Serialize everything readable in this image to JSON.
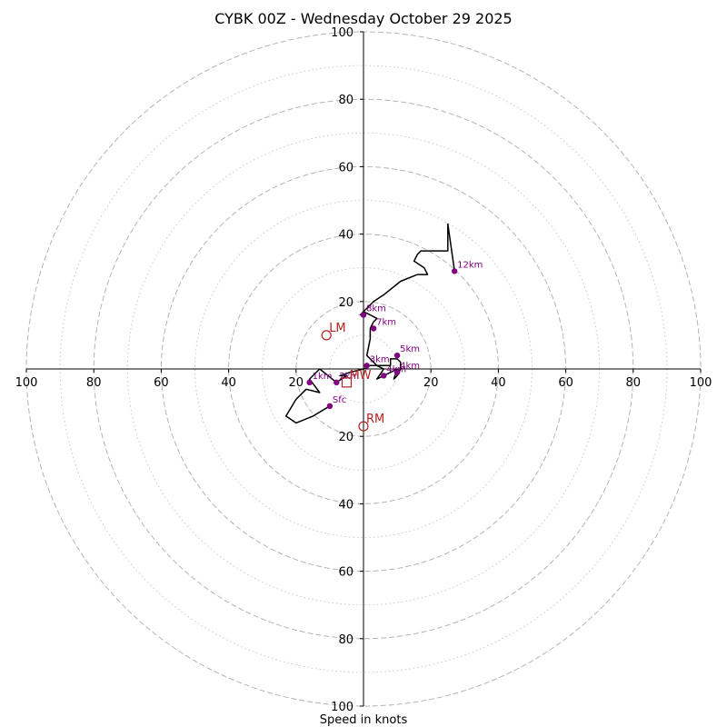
{
  "chart_data": {
    "type": "hodograph",
    "title": "CYBK 00Z - Wednesday October 29 2025",
    "xlabel": "Speed in knots",
    "units": "knots",
    "range": [
      -100,
      100
    ],
    "dashed_rings": [
      20,
      40,
      60,
      80,
      100
    ],
    "dotted_rings": [
      10,
      30,
      50,
      70,
      90
    ],
    "x_tick_labels": [
      "100",
      "80",
      "60",
      "40",
      "20",
      "20",
      "40",
      "60",
      "80",
      "100"
    ],
    "y_tick_labels": [
      "100",
      "80",
      "60",
      "40",
      "20",
      "20",
      "40",
      "60",
      "80",
      "100"
    ],
    "trace_color": "#000000",
    "label_color": "#800080",
    "motion_color": "#b22222",
    "trace": [
      [
        -10,
        -11
      ],
      [
        -15,
        -14
      ],
      [
        -20,
        -16
      ],
      [
        -23,
        -14
      ],
      [
        -20,
        -9
      ],
      [
        -17,
        -6
      ],
      [
        -13,
        -7
      ],
      [
        -16,
        -3
      ],
      [
        -13,
        0
      ],
      [
        -8,
        -4
      ],
      [
        -5,
        -2
      ],
      [
        -7,
        -2
      ],
      [
        -4,
        -1
      ],
      [
        0,
        0
      ],
      [
        2,
        1
      ],
      [
        4,
        1
      ],
      [
        6,
        0
      ],
      [
        4,
        -3
      ],
      [
        6,
        -2
      ],
      [
        8,
        -1
      ],
      [
        10,
        0
      ],
      [
        9,
        -3
      ],
      [
        10,
        -2
      ],
      [
        11,
        0
      ],
      [
        11,
        2
      ],
      [
        10,
        3
      ],
      [
        9,
        3
      ],
      [
        8,
        3
      ],
      [
        8,
        1
      ],
      [
        4,
        1
      ],
      [
        2,
        3
      ],
      [
        1,
        4
      ],
      [
        2,
        9
      ],
      [
        2,
        12
      ],
      [
        3,
        14
      ],
      [
        4,
        15
      ],
      [
        2,
        16
      ],
      [
        0,
        17
      ],
      [
        -1,
        16
      ],
      [
        3,
        20
      ],
      [
        6,
        22
      ],
      [
        11,
        26
      ],
      [
        16,
        28
      ],
      [
        19,
        28
      ],
      [
        18,
        30
      ],
      [
        15,
        32
      ],
      [
        16,
        34
      ],
      [
        17,
        35
      ],
      [
        25,
        35
      ],
      [
        25,
        43
      ],
      [
        27,
        29
      ]
    ],
    "height_markers": [
      {
        "label": "Sfc",
        "u": -10,
        "v": -11
      },
      {
        "label": "1km",
        "u": -16,
        "v": -4
      },
      {
        "label": "2km",
        "u": -8,
        "v": -4
      },
      {
        "label": "3km",
        "u": 1,
        "v": 1
      },
      {
        "label": "4km",
        "u": 6,
        "v": -2
      },
      {
        "label": "4km",
        "u": 10,
        "v": -1
      },
      {
        "label": "5km",
        "u": 10,
        "v": 4
      },
      {
        "label": "7km",
        "u": 3,
        "v": 12
      },
      {
        "label": "8km",
        "u": 0,
        "v": 16
      },
      {
        "label": "12km",
        "u": 27,
        "v": 29
      }
    ],
    "storm_motions": [
      {
        "label": "LM",
        "u": -11,
        "v": 10,
        "marker": "circle"
      },
      {
        "label": "RM",
        "u": 0,
        "v": -17,
        "marker": "circle"
      },
      {
        "label": "MW",
        "u": -5,
        "v": -4,
        "marker": "square"
      }
    ]
  }
}
